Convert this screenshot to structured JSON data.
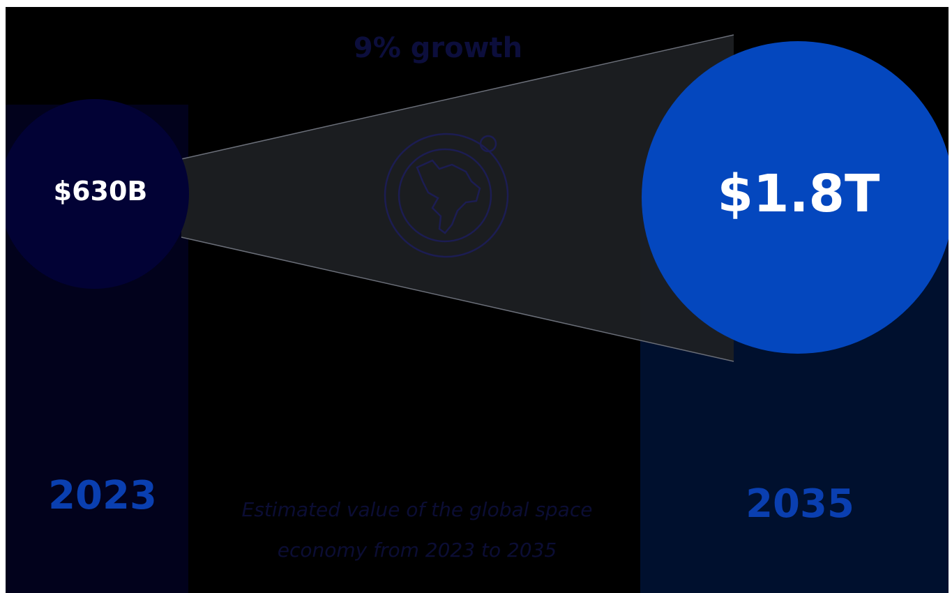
{
  "colors": {
    "background": "#000000",
    "circle_2023": "#020235",
    "circle_2035": "#0447be",
    "column_2023": "#02021c",
    "column_2035": "#00102e",
    "funnel": "#1d1f23",
    "year_label": "#0a3fb0",
    "muted_text": "#0c0e3c"
  },
  "chart_data": {
    "type": "bubble-comparison",
    "categories": [
      "2023",
      "2035"
    ],
    "values": [
      630,
      1800
    ],
    "unit": "billion USD",
    "value_labels": [
      "$630B",
      "$1.8T"
    ],
    "annotation": "9% growth",
    "caption": "Estimated value of the global space economy from 2023 to 2035"
  },
  "icons": {
    "center": "globe-orbit-icon"
  }
}
